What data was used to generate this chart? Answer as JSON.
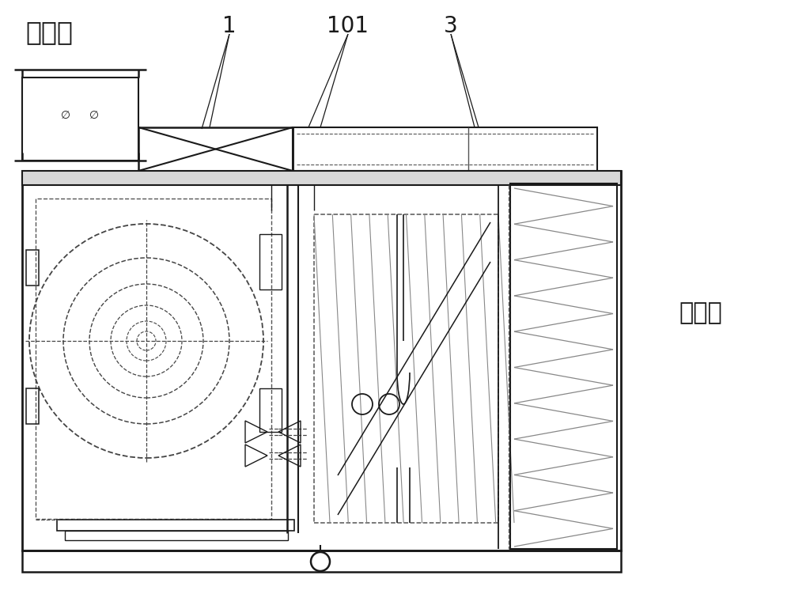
{
  "label_songfengkou": "送风口",
  "label_jinfengkou": "进风口",
  "label_1": "1",
  "label_101": "101",
  "label_3": "3",
  "bg_color": "#ffffff",
  "line_color": "#1a1a1a",
  "fig_width": 10.0,
  "fig_height": 7.51
}
